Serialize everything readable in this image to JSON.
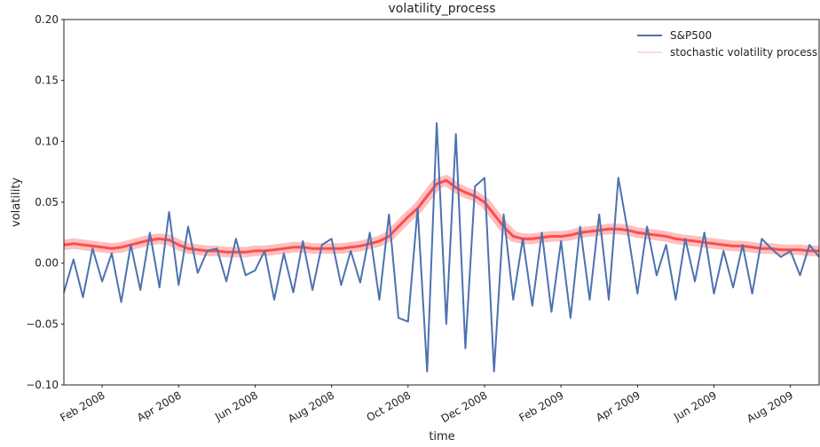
{
  "chart_data": {
    "type": "line",
    "title": "volatility_process",
    "x_label": "time",
    "y_label": "volatility",
    "x": [
      "2008-01",
      "2008-01",
      "2008-01",
      "2008-01",
      "2008-02",
      "2008-02",
      "2008-02",
      "2008-02",
      "2008-03",
      "2008-03",
      "2008-03",
      "2008-03",
      "2008-04",
      "2008-04",
      "2008-04",
      "2008-04",
      "2008-05",
      "2008-05",
      "2008-05",
      "2008-05",
      "2008-06",
      "2008-06",
      "2008-06",
      "2008-06",
      "2008-07",
      "2008-07",
      "2008-07",
      "2008-07",
      "2008-08",
      "2008-08",
      "2008-08",
      "2008-08",
      "2008-09",
      "2008-09",
      "2008-09",
      "2008-09",
      "2008-10",
      "2008-10",
      "2008-10",
      "2008-10",
      "2008-11",
      "2008-11",
      "2008-11",
      "2008-11",
      "2008-12",
      "2008-12",
      "2008-12",
      "2008-12",
      "2009-01",
      "2009-01",
      "2009-01",
      "2009-01",
      "2009-02",
      "2009-02",
      "2009-02",
      "2009-02",
      "2009-03",
      "2009-03",
      "2009-03",
      "2009-03",
      "2009-04",
      "2009-04",
      "2009-04",
      "2009-04",
      "2009-05",
      "2009-05",
      "2009-05",
      "2009-05",
      "2009-06",
      "2009-06",
      "2009-06",
      "2009-06",
      "2009-07",
      "2009-07",
      "2009-07",
      "2009-07",
      "2009-08",
      "2009-08",
      "2009-08",
      "2009-08"
    ],
    "series": [
      {
        "name": "S&P500",
        "color": "#4c72b0",
        "values": [
          -0.024,
          0.003,
          -0.028,
          0.012,
          -0.015,
          0.008,
          -0.032,
          0.015,
          -0.022,
          0.025,
          -0.02,
          0.042,
          -0.018,
          0.03,
          -0.008,
          0.01,
          0.012,
          -0.015,
          0.02,
          -0.01,
          -0.006,
          0.01,
          -0.03,
          0.008,
          -0.024,
          0.018,
          -0.022,
          0.015,
          0.02,
          -0.018,
          0.01,
          -0.016,
          0.025,
          -0.03,
          0.04,
          -0.045,
          -0.048,
          0.045,
          -0.089,
          0.115,
          -0.05,
          0.106,
          -0.07,
          0.063,
          0.07,
          -0.089,
          0.04,
          -0.03,
          0.02,
          -0.035,
          0.025,
          -0.04,
          0.018,
          -0.045,
          0.03,
          -0.03,
          0.04,
          -0.03,
          0.07,
          0.025,
          -0.025,
          0.03,
          -0.01,
          0.015,
          -0.03,
          0.02,
          -0.015,
          0.025,
          -0.025,
          0.01,
          -0.02,
          0.015,
          -0.025,
          0.02,
          0.012,
          0.005,
          0.01,
          -0.01,
          0.015,
          0.005
        ]
      },
      {
        "name": "stochastic volatility process",
        "color": "#ff0000",
        "values": [
          0.015,
          0.016,
          0.015,
          0.014,
          0.013,
          0.012,
          0.013,
          0.015,
          0.017,
          0.019,
          0.02,
          0.019,
          0.015,
          0.012,
          0.011,
          0.01,
          0.01,
          0.009,
          0.009,
          0.009,
          0.01,
          0.01,
          0.011,
          0.012,
          0.013,
          0.013,
          0.012,
          0.012,
          0.012,
          0.012,
          0.013,
          0.014,
          0.016,
          0.018,
          0.022,
          0.03,
          0.038,
          0.045,
          0.055,
          0.065,
          0.068,
          0.062,
          0.058,
          0.055,
          0.05,
          0.04,
          0.03,
          0.022,
          0.02,
          0.02,
          0.021,
          0.022,
          0.022,
          0.023,
          0.025,
          0.026,
          0.027,
          0.028,
          0.028,
          0.027,
          0.025,
          0.024,
          0.023,
          0.022,
          0.02,
          0.019,
          0.018,
          0.017,
          0.016,
          0.015,
          0.014,
          0.014,
          0.013,
          0.012,
          0.012,
          0.011,
          0.011,
          0.011,
          0.01,
          0.01
        ]
      }
    ],
    "ylim": [
      -0.1,
      0.2
    ],
    "yticks": [
      {
        "value": -0.1,
        "label": "−0.10"
      },
      {
        "value": -0.05,
        "label": "−0.05"
      },
      {
        "value": 0,
        "label": "0.00"
      },
      {
        "value": 0.05,
        "label": "0.05"
      },
      {
        "value": 0.1,
        "label": "0.10"
      },
      {
        "value": 0.15,
        "label": "0.15"
      },
      {
        "value": 0.2,
        "label": "0.20"
      }
    ],
    "xticks": [
      {
        "value": "2008-02",
        "label": "Feb 2008"
      },
      {
        "value": "2008-04",
        "label": "Apr 2008"
      },
      {
        "value": "2008-06",
        "label": "Jun 2008"
      },
      {
        "value": "2008-08",
        "label": "Aug 2008"
      },
      {
        "value": "2008-10",
        "label": "Oct 2008"
      },
      {
        "value": "2008-12",
        "label": "Dec 2008"
      },
      {
        "value": "2009-02",
        "label": "Feb 2009"
      },
      {
        "value": "2009-04",
        "label": "Apr 2009"
      },
      {
        "value": "2009-06",
        "label": "Jun 2009"
      },
      {
        "value": "2009-08",
        "label": "Aug 2009"
      }
    ],
    "legend": "upper right"
  }
}
